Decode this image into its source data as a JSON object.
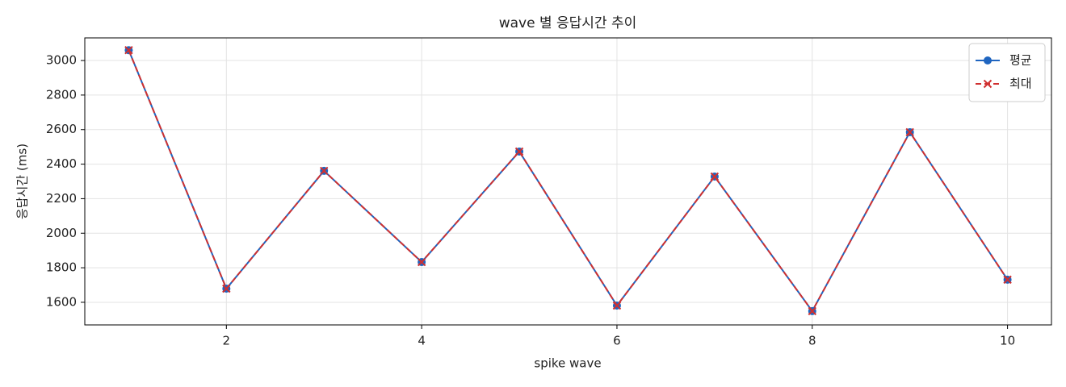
{
  "chart_data": {
    "type": "line",
    "title": "wave 별 응답시간 추이",
    "x_label": "spike wave",
    "y_label": "응답시간 (ms)",
    "x": [
      1,
      2,
      3,
      4,
      5,
      6,
      7,
      8,
      9,
      10
    ],
    "series": [
      {
        "name": "평균",
        "color": "#1f65c0",
        "style": "solid",
        "marker": "circle",
        "values": [
          3060,
          1679,
          2361,
          1833,
          2473,
          1581,
          2328,
          1549,
          2585,
          1731
        ]
      },
      {
        "name": "최대",
        "color": "#d03030",
        "style": "dashed",
        "marker": "x",
        "values": [
          3060,
          1679,
          2361,
          1833,
          2473,
          1581,
          2328,
          1549,
          2585,
          1731
        ]
      }
    ],
    "xlim": [
      0.55,
      10.45
    ],
    "xticks": [
      2,
      4,
      6,
      8,
      10
    ],
    "ylim": [
      1469,
      3131
    ],
    "yticks": [
      1600,
      1800,
      2000,
      2200,
      2400,
      2600,
      2800,
      3000
    ],
    "grid": true,
    "legend": "upper right"
  }
}
